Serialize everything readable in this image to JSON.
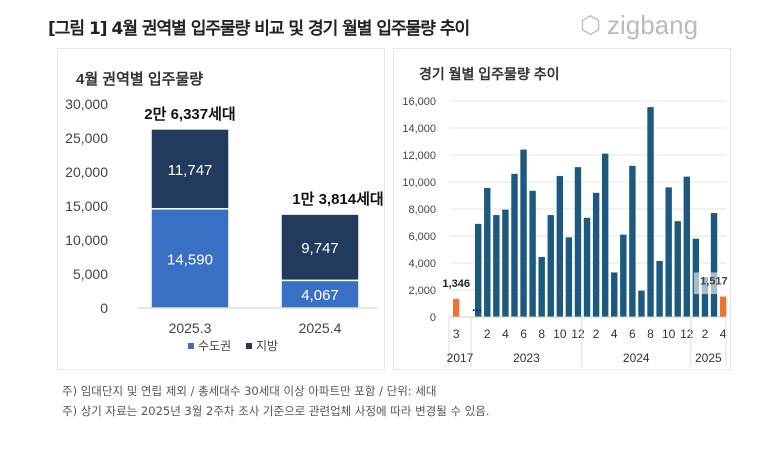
{
  "title": "[그림 1] 4월 권역별 입주물량 비교 및 경기 월별 입주물량 추이",
  "logo": "zigbang",
  "notes": [
    "주) 임대단지 및 연립 제외 / 총세대수 30세대 이상 아파트만 포함 / 단위: 세대",
    "주) 상기 자료는 2025년 3월 2주차 조사 기준으로 관련업체 사정에 따라 변경될 수 있음."
  ],
  "chart_data": [
    {
      "type": "bar",
      "stacked": true,
      "title": "4월 권역별 입주물량",
      "categories": [
        "2025.3",
        "2025.4"
      ],
      "series": [
        {
          "name": "수도권",
          "values": [
            14590,
            4067
          ],
          "color": "#3a70c4"
        },
        {
          "name": "지방",
          "values": [
            11747,
            9747
          ],
          "color": "#213a5e"
        }
      ],
      "value_labels": [
        [
          "14,590",
          "4,067"
        ],
        [
          "11,747",
          "9,747"
        ]
      ],
      "total_labels": [
        "2만 6,337세대",
        "1만 3,814세대"
      ],
      "yticks": [
        "0",
        "5,000",
        "10,000",
        "15,000",
        "20,000",
        "25,000",
        "30,000"
      ],
      "ylim": [
        0,
        30000
      ],
      "legend": "bottom"
    },
    {
      "type": "bar",
      "title": "경기 월별 입주물량 추이",
      "ylim": [
        0,
        16000
      ],
      "yticks": [
        "0",
        "2,000",
        "4,000",
        "6,000",
        "8,000",
        "10,000",
        "12,000",
        "14,000",
        "16,000"
      ],
      "x": [
        "2017-3",
        "2023-1",
        "2023-2",
        "2023-3",
        "2023-4",
        "2023-5",
        "2023-6",
        "2023-7",
        "2023-8",
        "2023-9",
        "2023-10",
        "2023-11",
        "2023-12",
        "2024-1",
        "2024-2",
        "2024-3",
        "2024-4",
        "2024-5",
        "2024-6",
        "2024-7",
        "2024-8",
        "2024-9",
        "2024-10",
        "2024-11",
        "2024-12",
        "2025-1",
        "2025-2",
        "2025-3",
        "2025-4"
      ],
      "values": [
        1346,
        6900,
        9550,
        7550,
        7950,
        10600,
        12400,
        9350,
        4450,
        7550,
        10450,
        5900,
        11100,
        7350,
        9200,
        12100,
        3300,
        6100,
        11200,
        1950,
        15550,
        4150,
        9600,
        7100,
        10400,
        5800,
        2950,
        7700,
        1517
      ],
      "xtick_labels": [
        "3",
        "",
        "2",
        "",
        "4",
        "",
        "6",
        "",
        "8",
        "",
        "10",
        "",
        "12",
        "",
        "2",
        "",
        "4",
        "",
        "6",
        "",
        "8",
        "",
        "10",
        "",
        "12",
        "",
        "2",
        "",
        "4"
      ],
      "year_labels": [
        "2017",
        "2023",
        "2024",
        "2025"
      ],
      "highlight_labels": [
        "1,346",
        "1,517"
      ],
      "gap_marker": "...",
      "colors": {
        "bar": "#1b5a7e",
        "highlight": "#ee7531"
      }
    }
  ]
}
